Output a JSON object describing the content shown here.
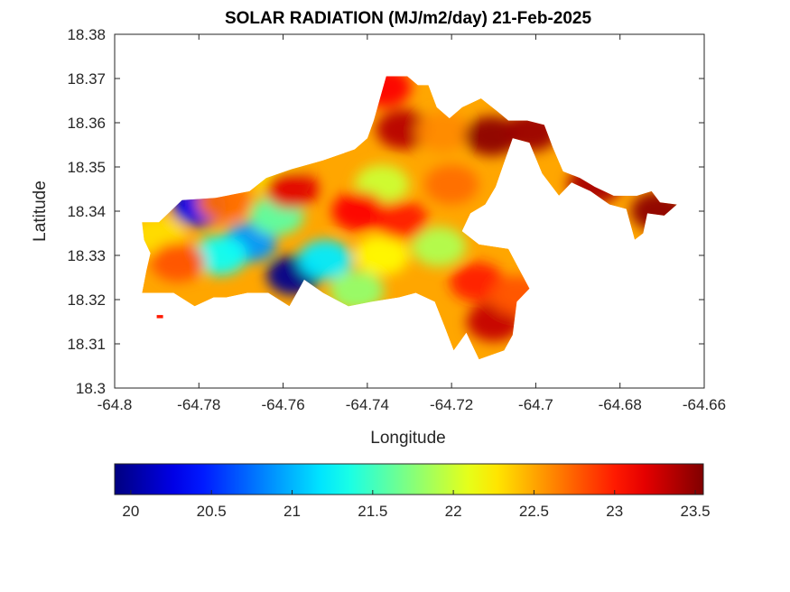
{
  "chart_data": {
    "type": "heatmap",
    "title": "SOLAR RADIATION (MJ/m2/day) 21-Feb-2025",
    "xlabel": "Longitude",
    "ylabel": "Latitude",
    "xlim": [
      -64.8,
      -64.66
    ],
    "ylim": [
      18.3,
      18.38
    ],
    "x_ticks": [
      "-64.8",
      "-64.78",
      "-64.76",
      "-64.74",
      "-64.72",
      "-64.7",
      "-64.68",
      "-64.66"
    ],
    "y_ticks": [
      "18.3",
      "18.31",
      "18.32",
      "18.33",
      "18.34",
      "18.35",
      "18.36",
      "18.37",
      "18.38"
    ],
    "x_tick_values": [
      -64.8,
      -64.78,
      -64.76,
      -64.74,
      -64.72,
      -64.7,
      -64.68,
      -64.66
    ],
    "y_tick_values": [
      18.3,
      18.31,
      18.32,
      18.33,
      18.34,
      18.35,
      18.36,
      18.37,
      18.38
    ],
    "colorbar": {
      "colormap": "jet",
      "range": [
        19.9,
        23.55
      ],
      "tick_labels": [
        "20",
        "20.5",
        "21",
        "21.5",
        "22",
        "22.5",
        "23",
        "23.5"
      ],
      "tick_values": [
        20,
        20.5,
        21,
        21.5,
        22,
        22.5,
        23,
        23.5
      ],
      "orientation": "horizontal",
      "placement": "below plot"
    },
    "grid": false,
    "regions": [
      {
        "name": "island",
        "value": 22.5,
        "outline": [
          [
            -64.7895,
            18.3375
          ],
          [
            -64.784,
            18.3425
          ],
          [
            -64.776,
            18.343
          ],
          [
            -64.768,
            18.3445
          ],
          [
            -64.764,
            18.3475
          ],
          [
            -64.758,
            18.3495
          ],
          [
            -64.7505,
            18.3515
          ],
          [
            -64.743,
            18.354
          ],
          [
            -64.74,
            18.3565
          ],
          [
            -64.7385,
            18.3605
          ],
          [
            -64.737,
            18.3655
          ],
          [
            -64.7355,
            18.3705
          ],
          [
            -64.7305,
            18.3705
          ],
          [
            -64.728,
            18.3685
          ],
          [
            -64.7255,
            18.3685
          ],
          [
            -64.7235,
            18.3635
          ],
          [
            -64.7205,
            18.361
          ],
          [
            -64.7175,
            18.3635
          ],
          [
            -64.713,
            18.3655
          ],
          [
            -64.709,
            18.3625
          ],
          [
            -64.7065,
            18.3605
          ],
          [
            -64.702,
            18.3605
          ],
          [
            -64.698,
            18.3595
          ],
          [
            -64.696,
            18.3545
          ],
          [
            -64.6935,
            18.349
          ],
          [
            -64.6895,
            18.3475
          ],
          [
            -64.686,
            18.3455
          ],
          [
            -64.6815,
            18.3435
          ],
          [
            -64.676,
            18.3435
          ],
          [
            -64.6725,
            18.3445
          ],
          [
            -64.6705,
            18.342
          ],
          [
            -64.6665,
            18.3415
          ],
          [
            -64.6695,
            18.339
          ],
          [
            -64.6735,
            18.3395
          ],
          [
            -64.6745,
            18.335
          ],
          [
            -64.6765,
            18.3335
          ],
          [
            -64.6785,
            18.3405
          ],
          [
            -64.6825,
            18.3415
          ],
          [
            -64.687,
            18.3445
          ],
          [
            -64.6915,
            18.3465
          ],
          [
            -64.6945,
            18.3435
          ],
          [
            -64.6985,
            18.3485
          ],
          [
            -64.7015,
            18.3555
          ],
          [
            -64.7055,
            18.3565
          ],
          [
            -64.7075,
            18.351
          ],
          [
            -64.7095,
            18.3455
          ],
          [
            -64.712,
            18.3415
          ],
          [
            -64.7155,
            18.3395
          ],
          [
            -64.7175,
            18.3355
          ],
          [
            -64.7135,
            18.3325
          ],
          [
            -64.7065,
            18.3315
          ],
          [
            -64.7015,
            18.3225
          ],
          [
            -64.7045,
            18.3195
          ],
          [
            -64.7055,
            18.312
          ],
          [
            -64.7075,
            18.3085
          ],
          [
            -64.7135,
            18.3065
          ],
          [
            -64.7165,
            18.3125
          ],
          [
            -64.7195,
            18.3085
          ],
          [
            -64.7215,
            18.3135
          ],
          [
            -64.724,
            18.3195
          ],
          [
            -64.7285,
            18.3215
          ],
          [
            -64.7325,
            18.3205
          ],
          [
            -64.739,
            18.3195
          ],
          [
            -64.7445,
            18.3185
          ],
          [
            -64.7505,
            18.3215
          ],
          [
            -64.755,
            18.3245
          ],
          [
            -64.7585,
            18.3185
          ],
          [
            -64.7635,
            18.3215
          ],
          [
            -64.7685,
            18.3215
          ],
          [
            -64.7735,
            18.3205
          ],
          [
            -64.7765,
            18.3205
          ],
          [
            -64.781,
            18.3185
          ],
          [
            -64.786,
            18.3215
          ],
          [
            -64.791,
            18.3215
          ],
          [
            -64.7935,
            18.3215
          ],
          [
            -64.7925,
            18.3265
          ],
          [
            -64.7915,
            18.3305
          ],
          [
            -64.793,
            18.3335
          ],
          [
            -64.7935,
            18.3375
          ]
        ]
      },
      {
        "name": "islet",
        "value": 23.0,
        "outline": [
          [
            -64.79,
            18.3165
          ],
          [
            -64.7885,
            18.3165
          ],
          [
            -64.7885,
            18.3158
          ],
          [
            -64.79,
            18.3158
          ]
        ]
      }
    ],
    "hotspots": [
      {
        "lon": -64.7575,
        "lat": 18.3255,
        "value": 19.95
      },
      {
        "lon": -64.78,
        "lat": 18.341,
        "value": 20.3
      },
      {
        "lon": -64.768,
        "lat": 18.333,
        "value": 20.9
      },
      {
        "lon": -64.75,
        "lat": 18.329,
        "value": 21.2
      },
      {
        "lon": -64.775,
        "lat": 18.33,
        "value": 21.3
      },
      {
        "lon": -64.7615,
        "lat": 18.339,
        "value": 21.6
      },
      {
        "lon": -64.7425,
        "lat": 18.322,
        "value": 21.8
      },
      {
        "lon": -64.7365,
        "lat": 18.346,
        "value": 22.0
      },
      {
        "lon": -64.723,
        "lat": 18.332,
        "value": 21.9
      },
      {
        "lon": -64.7365,
        "lat": 18.33,
        "value": 22.2
      },
      {
        "lon": -64.76,
        "lat": 18.3465,
        "value": 22.2
      },
      {
        "lon": -64.7895,
        "lat": 18.3345,
        "value": 22.3
      },
      {
        "lon": -64.785,
        "lat": 18.3285,
        "value": 22.8
      },
      {
        "lon": -64.774,
        "lat": 18.342,
        "value": 22.7
      },
      {
        "lon": -64.742,
        "lat": 18.34,
        "value": 23.1
      },
      {
        "lon": -64.732,
        "lat": 18.338,
        "value": 23.0
      },
      {
        "lon": -64.758,
        "lat": 18.345,
        "value": 23.2
      },
      {
        "lon": -64.7315,
        "lat": 18.3585,
        "value": 23.35
      },
      {
        "lon": -64.722,
        "lat": 18.358,
        "value": 22.6
      },
      {
        "lon": -64.736,
        "lat": 18.368,
        "value": 23.1
      },
      {
        "lon": -64.7105,
        "lat": 18.357,
        "value": 23.5
      },
      {
        "lon": -64.701,
        "lat": 18.358,
        "value": 23.45
      },
      {
        "lon": -64.686,
        "lat": 18.346,
        "value": 23.4
      },
      {
        "lon": -64.671,
        "lat": 18.34,
        "value": 23.5
      },
      {
        "lon": -64.71,
        "lat": 18.315,
        "value": 23.3
      },
      {
        "lon": -64.714,
        "lat": 18.324,
        "value": 23.0
      },
      {
        "lon": -64.7045,
        "lat": 18.321,
        "value": 22.8
      },
      {
        "lon": -64.72,
        "lat": 18.346,
        "value": 22.7
      }
    ]
  }
}
